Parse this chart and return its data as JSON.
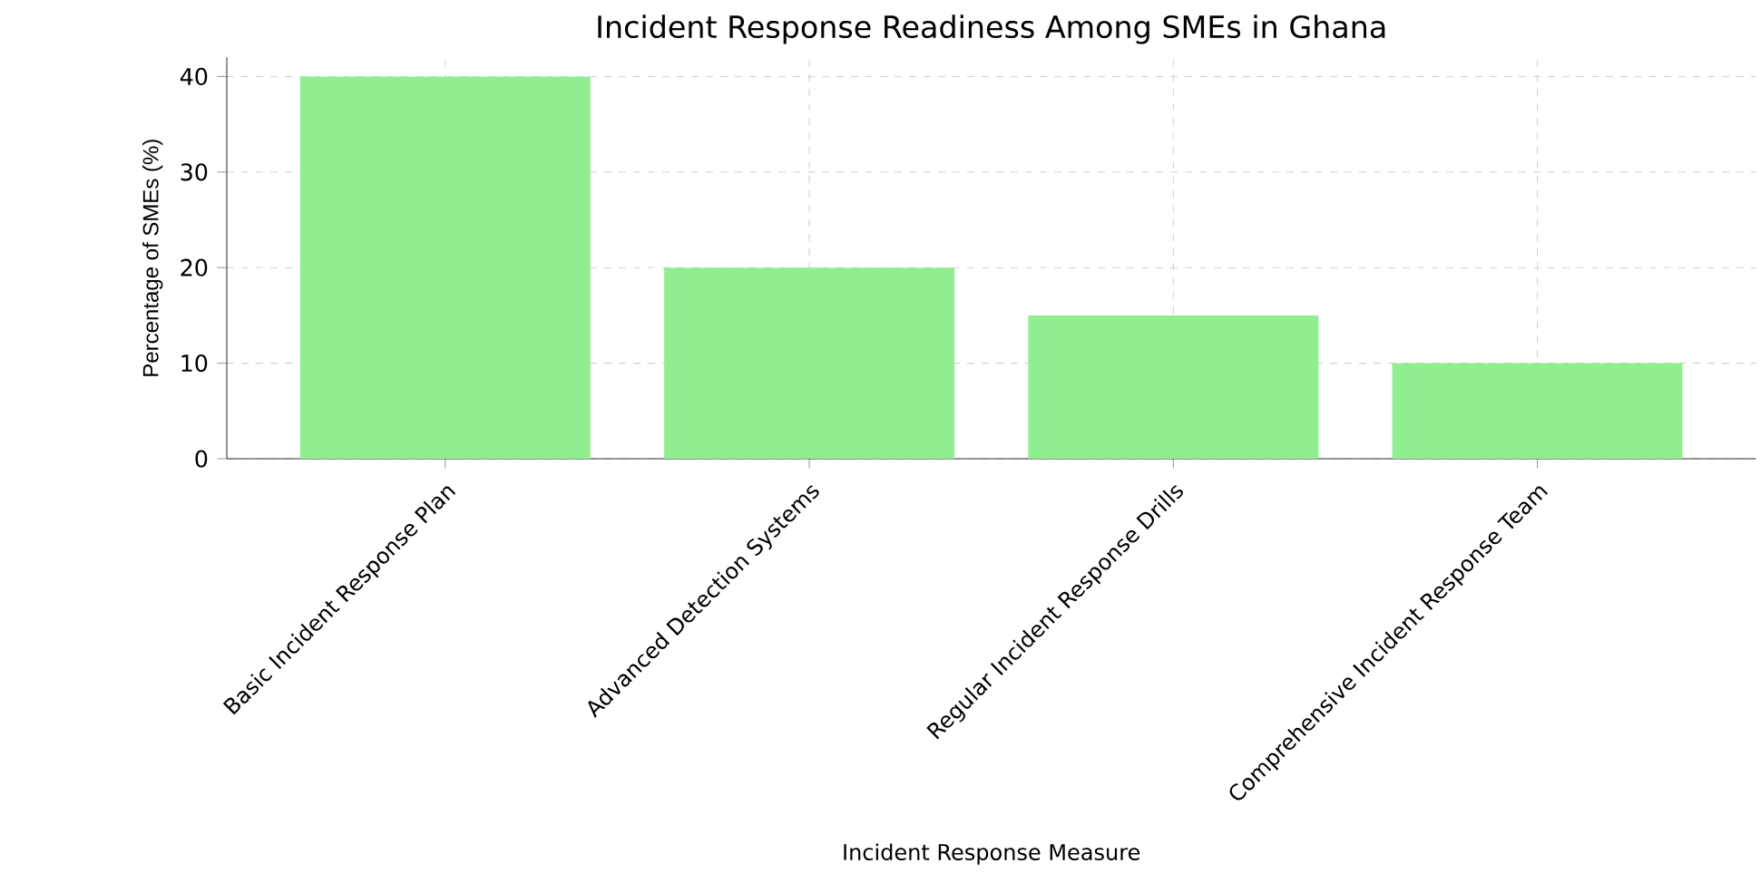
{
  "chart_data": {
    "type": "bar",
    "title": "Incident Response Readiness Among SMEs in Ghana",
    "xlabel": "Incident Response Measure",
    "ylabel": "Percentage of SMEs (%)",
    "categories": [
      "Basic Incident Response Plan",
      "Advanced Detection Systems",
      "Regular Incident Response Drills",
      "Comprehensive Incident Response Team"
    ],
    "values": [
      40,
      20,
      15,
      10
    ],
    "color": "#90ee90",
    "ylim": [
      0,
      42
    ],
    "yticks": [
      0,
      10,
      20,
      30,
      40
    ],
    "grid": true
  }
}
